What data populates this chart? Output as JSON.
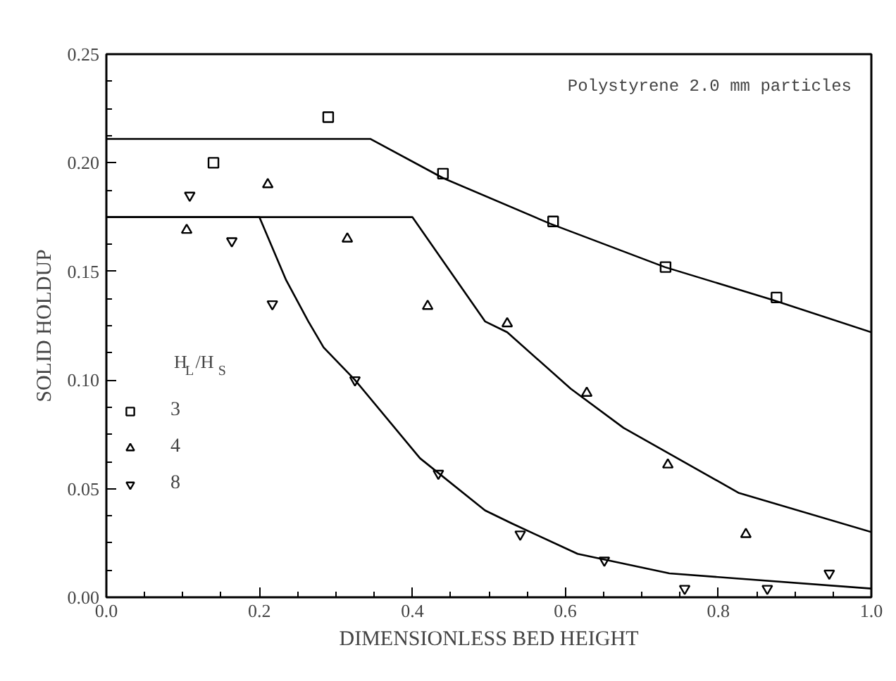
{
  "chart_data": {
    "type": "scatter",
    "xlabel": "DIMENSIONLESS BED HEIGHT",
    "ylabel": "SOLID HOLDUP",
    "legend_title": "H$_{L}$/H$_{S}$",
    "legend": "left",
    "grid": false,
    "xlim": [
      0,
      1.0
    ],
    "ylim": [
      0,
      0.25
    ],
    "xticks": [
      {
        "value": 0,
        "label": "0.0"
      },
      0.2,
      0.4,
      0.6,
      0.8,
      {
        "value": 1.0,
        "label": "1.0"
      }
    ],
    "yticks": [
      {
        "value": 0,
        "label": "0.00"
      },
      0.05,
      {
        "value": 0.1,
        "label": "0.10"
      },
      0.15,
      {
        "value": 0.2,
        "label": "0.20"
      },
      0.25
    ],
    "annotations": [
      "Polystyrene 2.0 mm particles"
    ],
    "series": [
      {
        "name": "3",
        "marker": "square",
        "color": "#000000",
        "x": [
          0.14,
          0.29,
          0.44,
          0.584,
          0.731,
          0.876
        ],
        "values": [
          0.2,
          0.221,
          0.195,
          0.173,
          0.152,
          0.138
        ]
      },
      {
        "name": "4",
        "marker": "triangle",
        "color": "#000000",
        "x": [
          0.105,
          0.211,
          0.315,
          0.42,
          0.524,
          0.628,
          0.734,
          0.836
        ],
        "values": [
          0.169,
          0.19,
          0.165,
          0.134,
          0.126,
          0.094,
          0.061,
          0.029
        ]
      },
      {
        "name": "8",
        "color": "#000000",
        "x": [
          0.109,
          0.164,
          0.217,
          0.325,
          0.434,
          0.541,
          0.651,
          0.756,
          0.864,
          0.945
        ],
        "values": [
          0.185,
          0.164,
          0.135,
          0.1,
          0.057,
          0.029,
          0.017,
          0.004,
          0.004,
          0.011
        ]
      },
      {
        "type": "line",
        "color": "#000000",
        "x": [
          0,
          0.345,
          0.44,
          0.58,
          0.73,
          0.87,
          1.0
        ],
        "values": [
          0.211,
          0.211,
          0.193,
          0.172,
          0.152,
          0.137,
          0.122
        ]
      },
      {
        "type": "line",
        "color": "#000000",
        "x": [
          0,
          0.4,
          0.495,
          0.524,
          0.607,
          0.676,
          0.827,
          1.0
        ],
        "values": [
          0.175,
          0.175,
          0.127,
          0.122,
          0.096,
          0.078,
          0.048,
          0.03
        ]
      },
      {
        "type": "line",
        "color": "#000000",
        "x": [
          0,
          0.2,
          0.235,
          0.264,
          0.284,
          0.325,
          0.41,
          0.495,
          0.53,
          0.616,
          0.736,
          1.0
        ],
        "values": [
          0.175,
          0.175,
          0.146,
          0.127,
          0.115,
          0.1,
          0.064,
          0.04,
          0.034,
          0.02,
          0.011,
          0.004
        ]
      }
    ]
  }
}
